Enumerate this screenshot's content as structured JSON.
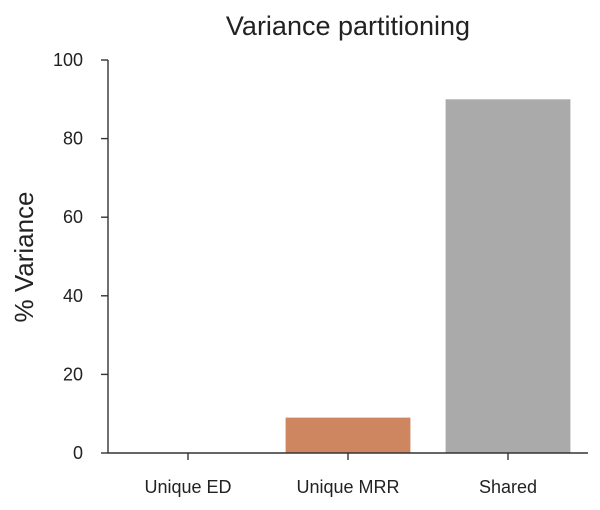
{
  "chart_data": {
    "type": "bar",
    "title": "Variance partitioning",
    "xlabel": "",
    "ylabel": "% Variance",
    "categories": [
      "Unique ED",
      "Unique MRR",
      "Shared"
    ],
    "values": [
      0,
      9,
      90
    ],
    "colors": [
      "#4c72b0",
      "#cd8660",
      "#aaaaaa"
    ],
    "ylim": [
      0,
      100
    ],
    "yticks": [
      0,
      20,
      40,
      60,
      80,
      100
    ],
    "grid": false
  }
}
